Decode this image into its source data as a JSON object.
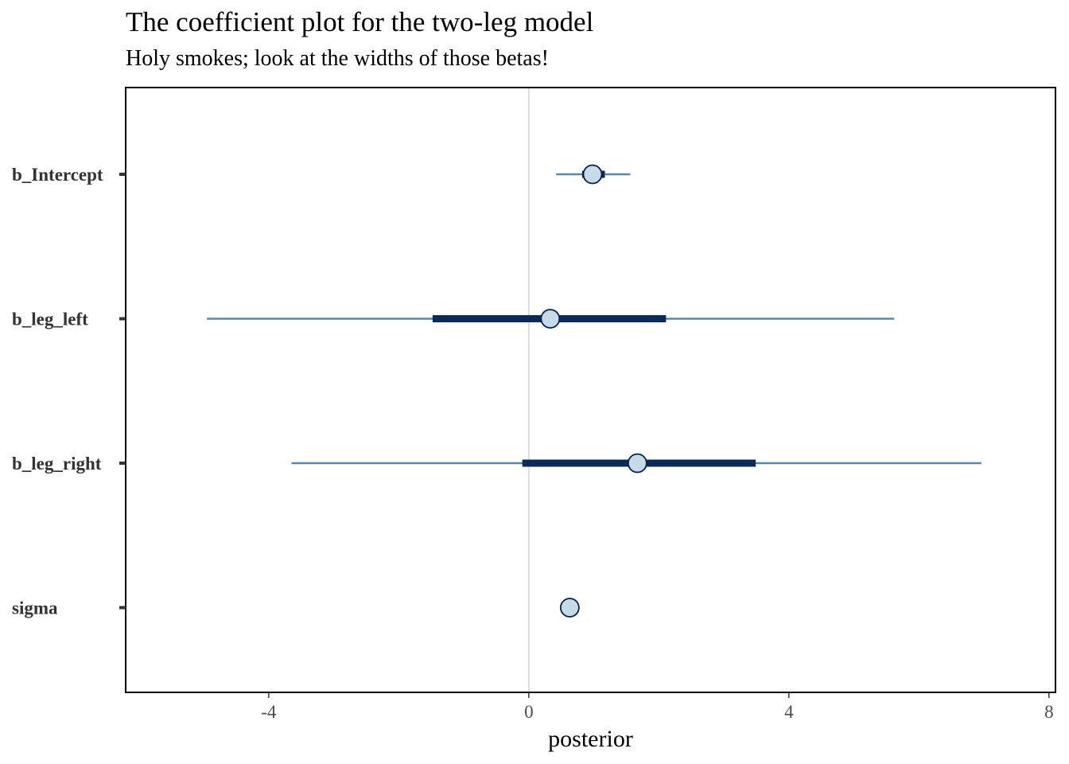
{
  "chart_data": {
    "type": "scatter",
    "title": "The coefficient plot for the two-leg model",
    "subtitle": "Holy smokes; look at the widths of those betas!",
    "xlabel": "posterior",
    "ylabel": "",
    "xlim": [
      -6.2,
      8.1
    ],
    "x_ticks": [
      -4,
      0,
      4,
      8
    ],
    "x_tick_labels": [
      "-4",
      "0",
      "4",
      "8"
    ],
    "grid": false,
    "reference_line_x": 0,
    "categories": [
      "b_Intercept",
      "b_leg_left",
      "b_leg_right",
      "sigma"
    ],
    "series": [
      {
        "category": "b_Intercept",
        "median": 0.98,
        "inner_interval": [
          0.82,
          1.17
        ],
        "outer_interval": [
          0.42,
          1.56
        ]
      },
      {
        "category": "b_leg_left",
        "median": 0.33,
        "inner_interval": [
          -1.48,
          2.11
        ],
        "outer_interval": [
          -4.95,
          5.62
        ]
      },
      {
        "category": "b_leg_right",
        "median": 1.67,
        "inner_interval": [
          -0.1,
          3.49
        ],
        "outer_interval": [
          -3.65,
          6.96
        ]
      },
      {
        "category": "sigma",
        "median": 0.63,
        "inner_interval": [
          0.55,
          0.72
        ],
        "outer_interval": [
          0.53,
          0.75
        ]
      }
    ],
    "colors": {
      "outer_interval": "#5b87a0",
      "inner_interval": "#0a2a5a",
      "point_fill": "#c6dbe8",
      "point_stroke": "#0a1e4a",
      "reference_line": "#dcdcdc",
      "axis": "#000000"
    }
  }
}
